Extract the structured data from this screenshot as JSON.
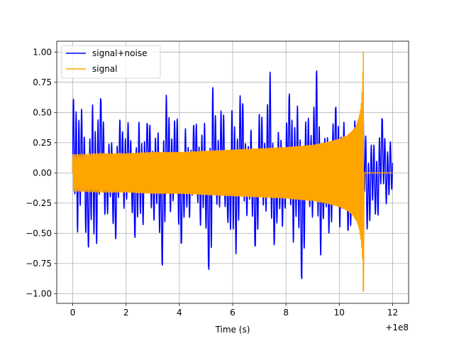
{
  "chart_data": {
    "type": "line",
    "title": "",
    "xlabel": "Time (s)",
    "ylabel": "",
    "x_offset_label": "+1e8",
    "xlim": [
      -0.6,
      12.6
    ],
    "ylim": [
      -1.08,
      1.09
    ],
    "grid": true,
    "legend_position": "upper-left",
    "x_ticks": [
      {
        "value": 0,
        "label": "0"
      },
      {
        "value": 2,
        "label": "2"
      },
      {
        "value": 4,
        "label": "4"
      },
      {
        "value": 6,
        "label": "6"
      },
      {
        "value": 8,
        "label": "8"
      },
      {
        "value": 10,
        "label": "10"
      },
      {
        "value": 12,
        "label": "12"
      }
    ],
    "y_ticks": [
      {
        "value": 1.0,
        "label": "1.00"
      },
      {
        "value": 0.75,
        "label": "0.75"
      },
      {
        "value": 0.5,
        "label": "0.50"
      },
      {
        "value": 0.25,
        "label": "0.25"
      },
      {
        "value": 0.0,
        "label": "0.00"
      },
      {
        "value": -0.25,
        "label": "−0.25"
      },
      {
        "value": -0.5,
        "label": "−0.50"
      },
      {
        "value": -0.75,
        "label": "−0.75"
      },
      {
        "value": -1.0,
        "label": "−1.00"
      }
    ],
    "series": [
      {
        "name": "signal+noise",
        "color": "#0000ff",
        "x": [
          0,
          0.2,
          0.4,
          0.6,
          0.8,
          1.0,
          1.2,
          1.4,
          1.6,
          1.8,
          2.0,
          2.2,
          2.4,
          2.6,
          2.8,
          3.0,
          3.2,
          3.4,
          3.6,
          3.8,
          4.0,
          4.2,
          4.4,
          4.6,
          4.8,
          5.0,
          5.2,
          5.4,
          5.6,
          5.8,
          6.0,
          6.2,
          6.4,
          6.6,
          6.8,
          7.0,
          7.2,
          7.4,
          7.6,
          7.8,
          8.0,
          8.2,
          8.4,
          8.6,
          8.8,
          9.0,
          9.2,
          9.4,
          9.6,
          9.8,
          10.0,
          10.2,
          10.4,
          10.6,
          10.8,
          11.0,
          11.2,
          11.4,
          11.6,
          11.8,
          12.0
        ],
        "y": [
          -0.58,
          0.78,
          -0.45,
          0.62,
          -0.84,
          0.65,
          -0.48,
          0.38,
          -0.55,
          0.42,
          -0.5,
          0.35,
          -0.62,
          0.55,
          -0.4,
          0.48,
          -0.52,
          0.82,
          -0.58,
          0.45,
          -0.6,
          0.55,
          -0.42,
          0.38,
          -0.55,
          0.62,
          -0.95,
          0.45,
          -0.6,
          0.35,
          0.85,
          -0.72,
          0.55,
          -0.4,
          0.6,
          -0.62,
          0.45,
          -0.85,
          0.52,
          -0.55,
          0.42,
          0.78,
          -0.7,
          -0.88,
          0.5,
          -0.6,
          0.92,
          -0.45,
          0.58,
          -0.5,
          0.62,
          -0.52,
          0.45,
          -0.5,
          0.55,
          -0.52,
          0.42,
          -0.4,
          0.45,
          -0.35,
          0.3
        ]
      },
      {
        "name": "signal",
        "color": "#ffa500",
        "x": [
          0,
          1,
          2,
          3,
          4,
          5,
          6,
          7,
          8,
          9,
          9.5,
          10,
          10.3,
          10.5,
          10.65,
          10.75,
          10.82,
          10.87,
          10.9,
          10.93,
          12.0
        ],
        "y": [
          0.15,
          0.16,
          0.16,
          0.17,
          0.17,
          0.18,
          0.19,
          0.2,
          0.21,
          0.23,
          0.25,
          0.28,
          0.31,
          0.35,
          0.4,
          0.47,
          0.57,
          0.72,
          1.0,
          0.0,
          0.0
        ]
      }
    ]
  }
}
